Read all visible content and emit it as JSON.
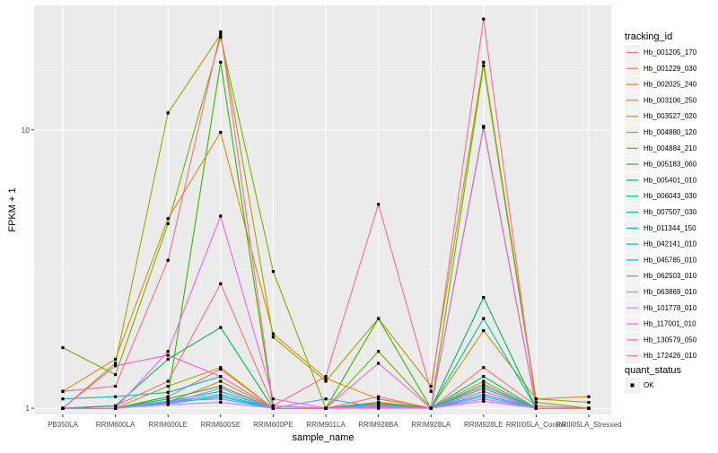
{
  "chart_data": {
    "type": "line",
    "xlabel": "sample_name",
    "ylabel": "FPKM + 1",
    "y_scale": "log10",
    "ylim": [
      0.95,
      28
    ],
    "y_ticks": [
      1,
      10
    ],
    "y_tick_labels": [
      "1",
      "10"
    ],
    "grid": true,
    "legend_placement": "right",
    "categories": [
      "PB350LA",
      "RRIM600LA",
      "RRIM600LE",
      "RRIM600SE",
      "RRIM600PE",
      "RRIM901LA",
      "RRIM928BA",
      "RRIM928LA",
      "RRIM928LE",
      "RRIII05LA_Control",
      "RRIII05LA_Stressed"
    ],
    "legend_title": "tracking_id",
    "series": [
      {
        "name": "Hb_001205_170",
        "color": "#F8766D",
        "values": [
          1.0,
          1.02,
          1.25,
          2.8,
          1.02,
          1.0,
          1.1,
          1.0,
          1.4,
          1.02,
          1.0
        ]
      },
      {
        "name": "Hb_001229_030",
        "color": "#F07E4F",
        "values": [
          1.0,
          1.0,
          1.1,
          1.38,
          1.0,
          1.0,
          1.05,
          1.0,
          1.2,
          1.0,
          1.0
        ]
      },
      {
        "name": "Hb_002025_240",
        "color": "#E58700",
        "values": [
          1.0,
          1.0,
          1.05,
          1.25,
          1.0,
          1.0,
          1.03,
          1.0,
          1.15,
          1.0,
          1.0
        ]
      },
      {
        "name": "Hb_003106_250",
        "color": "#D89000",
        "values": [
          1.15,
          1.5,
          4.8,
          9.8,
          1.85,
          1.28,
          1.08,
          1.0,
          1.9,
          1.08,
          1.1
        ]
      },
      {
        "name": "Hb_003527_020",
        "color": "#C99800",
        "values": [
          1.0,
          1.0,
          1.2,
          1.4,
          1.0,
          1.0,
          1.04,
          1.0,
          1.25,
          1.0,
          1.0
        ]
      },
      {
        "name": "Hb_004880_120",
        "color": "#A3A500",
        "values": [
          1.0,
          1.45,
          11.5,
          22.0,
          1.8,
          1.25,
          2.1,
          1.2,
          17.5,
          1.08,
          1.05
        ]
      },
      {
        "name": "Hb_004884_210",
        "color": "#7CAE00",
        "values": [
          1.65,
          1.32,
          4.6,
          21.5,
          3.1,
          1.0,
          1.6,
          1.0,
          17.0,
          1.05,
          1.0
        ]
      },
      {
        "name": "Hb_005183_060",
        "color": "#39B600",
        "values": [
          1.0,
          1.0,
          1.1,
          17.5,
          1.0,
          1.0,
          2.1,
          1.0,
          10.2,
          1.0,
          1.0
        ]
      },
      {
        "name": "Hb_005401_010",
        "color": "#00BB4E",
        "values": [
          1.0,
          1.02,
          1.5,
          1.95,
          1.0,
          1.0,
          1.05,
          1.0,
          2.5,
          1.0,
          1.0
        ]
      },
      {
        "name": "Hb_006043_030",
        "color": "#00BF7D",
        "values": [
          1.0,
          1.0,
          1.08,
          1.2,
          1.0,
          1.0,
          1.02,
          1.0,
          1.3,
          1.0,
          1.0
        ]
      },
      {
        "name": "Hb_007507_030",
        "color": "#00C1A3",
        "values": [
          1.0,
          1.0,
          1.06,
          1.15,
          1.0,
          1.0,
          1.02,
          1.0,
          2.1,
          1.0,
          1.0
        ]
      },
      {
        "name": "Hb_011344_150",
        "color": "#00BFC4",
        "values": [
          1.08,
          1.1,
          1.14,
          1.3,
          1.0,
          1.0,
          1.03,
          1.0,
          1.22,
          1.0,
          1.0
        ]
      },
      {
        "name": "Hb_042141_010",
        "color": "#00B9E3",
        "values": [
          1.0,
          1.0,
          1.05,
          1.12,
          1.0,
          1.0,
          1.02,
          1.0,
          1.18,
          1.0,
          1.0
        ]
      },
      {
        "name": "Hb_045785_010",
        "color": "#00ADFA",
        "values": [
          1.0,
          1.0,
          1.04,
          1.1,
          1.0,
          1.0,
          1.01,
          1.0,
          1.12,
          1.0,
          1.0
        ]
      },
      {
        "name": "Hb_062503_010",
        "color": "#619CFF",
        "values": [
          1.0,
          1.0,
          1.06,
          1.08,
          1.0,
          1.08,
          1.01,
          1.0,
          1.1,
          1.0,
          1.0
        ]
      },
      {
        "name": "Hb_063869_010",
        "color": "#AE87FF",
        "values": [
          1.0,
          1.0,
          1.03,
          1.05,
          1.0,
          1.0,
          1.01,
          1.0,
          1.08,
          1.0,
          1.0
        ]
      },
      {
        "name": "Hb_101778_010",
        "color": "#DB72FB",
        "values": [
          1.0,
          1.0,
          1.04,
          1.18,
          1.0,
          1.0,
          1.02,
          1.0,
          1.06,
          1.0,
          1.0
        ]
      },
      {
        "name": "Hb_117001_010",
        "color": "#F564E3",
        "values": [
          1.0,
          1.0,
          1.6,
          4.9,
          1.08,
          1.0,
          1.45,
          1.0,
          10.3,
          1.0,
          1.0
        ]
      },
      {
        "name": "Hb_130579_050",
        "color": "#FF61C3",
        "values": [
          1.0,
          1.42,
          1.55,
          1.3,
          1.0,
          1.0,
          1.0,
          1.0,
          1.15,
          1.0,
          1.0
        ]
      },
      {
        "name": "Hb_172426_010",
        "color": "#FF6C91",
        "values": [
          1.15,
          1.2,
          3.4,
          22.5,
          1.02,
          1.3,
          5.4,
          1.15,
          25.0,
          1.0,
          1.0
        ]
      }
    ],
    "shape_legend": {
      "title": "quant_status",
      "entries": [
        {
          "label": "OK"
        }
      ]
    }
  }
}
